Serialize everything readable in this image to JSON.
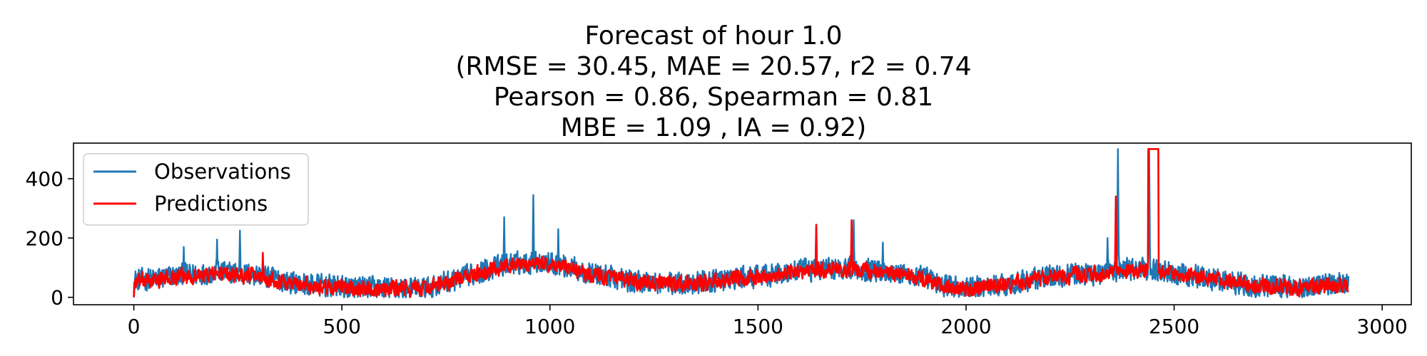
{
  "chart_data": {
    "type": "line",
    "title_lines": [
      "Forecast of hour 1.0",
      "(RMSE = 30.45, MAE = 20.57, r2 = 0.74",
      "Pearson = 0.86, Spearman = 0.81",
      "MBE = 1.09 , IA = 0.92)"
    ],
    "xlabel": "",
    "ylabel": "",
    "xlim": [
      -145,
      3070
    ],
    "ylim": [
      -25,
      520
    ],
    "x_ticks": [
      0,
      500,
      1000,
      1500,
      2000,
      2500,
      3000
    ],
    "y_ticks": [
      0,
      200,
      400
    ],
    "grid": false,
    "legend_position": "upper-left",
    "n_points": 2920,
    "series": [
      {
        "name": "Observations",
        "color": "#1f77b4",
        "profile": [
          [
            0,
            55
          ],
          [
            120,
            75
          ],
          [
            200,
            85
          ],
          [
            300,
            75
          ],
          [
            400,
            45
          ],
          [
            500,
            35
          ],
          [
            600,
            30
          ],
          [
            700,
            30
          ],
          [
            800,
            70
          ],
          [
            900,
            115
          ],
          [
            1000,
            120
          ],
          [
            1100,
            80
          ],
          [
            1200,
            55
          ],
          [
            1300,
            45
          ],
          [
            1400,
            55
          ],
          [
            1500,
            70
          ],
          [
            1600,
            90
          ],
          [
            1700,
            100
          ],
          [
            1800,
            90
          ],
          [
            1900,
            65
          ],
          [
            1950,
            40
          ],
          [
            2000,
            30
          ],
          [
            2100,
            45
          ],
          [
            2200,
            70
          ],
          [
            2300,
            80
          ],
          [
            2400,
            95
          ],
          [
            2500,
            85
          ],
          [
            2600,
            60
          ],
          [
            2700,
            40
          ],
          [
            2800,
            35
          ],
          [
            2920,
            50
          ]
        ],
        "noise_amplitude": 38,
        "spikes": [
          [
            120,
            170
          ],
          [
            200,
            195
          ],
          [
            255,
            225
          ],
          [
            890,
            270
          ],
          [
            960,
            345
          ],
          [
            1020,
            230
          ],
          [
            1640,
            235
          ],
          [
            1730,
            260
          ],
          [
            1800,
            185
          ],
          [
            2340,
            200
          ],
          [
            2365,
            500
          ],
          [
            2440,
            500
          ]
        ]
      },
      {
        "name": "Predictions",
        "color": "#ff0000",
        "profile": [
          [
            0,
            50
          ],
          [
            120,
            70
          ],
          [
            200,
            80
          ],
          [
            300,
            72
          ],
          [
            400,
            42
          ],
          [
            500,
            33
          ],
          [
            600,
            30
          ],
          [
            700,
            30
          ],
          [
            800,
            68
          ],
          [
            900,
            110
          ],
          [
            1000,
            112
          ],
          [
            1100,
            78
          ],
          [
            1200,
            52
          ],
          [
            1300,
            44
          ],
          [
            1400,
            52
          ],
          [
            1500,
            68
          ],
          [
            1600,
            88
          ],
          [
            1700,
            95
          ],
          [
            1800,
            85
          ],
          [
            1900,
            60
          ],
          [
            1950,
            35
          ],
          [
            2000,
            25
          ],
          [
            2100,
            42
          ],
          [
            2200,
            68
          ],
          [
            2300,
            78
          ],
          [
            2400,
            90
          ],
          [
            2500,
            80
          ],
          [
            2600,
            55
          ],
          [
            2700,
            38
          ],
          [
            2800,
            32
          ],
          [
            2920,
            45
          ]
        ],
        "noise_amplitude": 26,
        "spikes": [
          [
            310,
            150
          ],
          [
            1640,
            245
          ],
          [
            1725,
            260
          ],
          [
            2360,
            340
          ]
        ],
        "plateaus": [
          [
            2438,
            2462,
            500
          ]
        ]
      }
    ]
  }
}
